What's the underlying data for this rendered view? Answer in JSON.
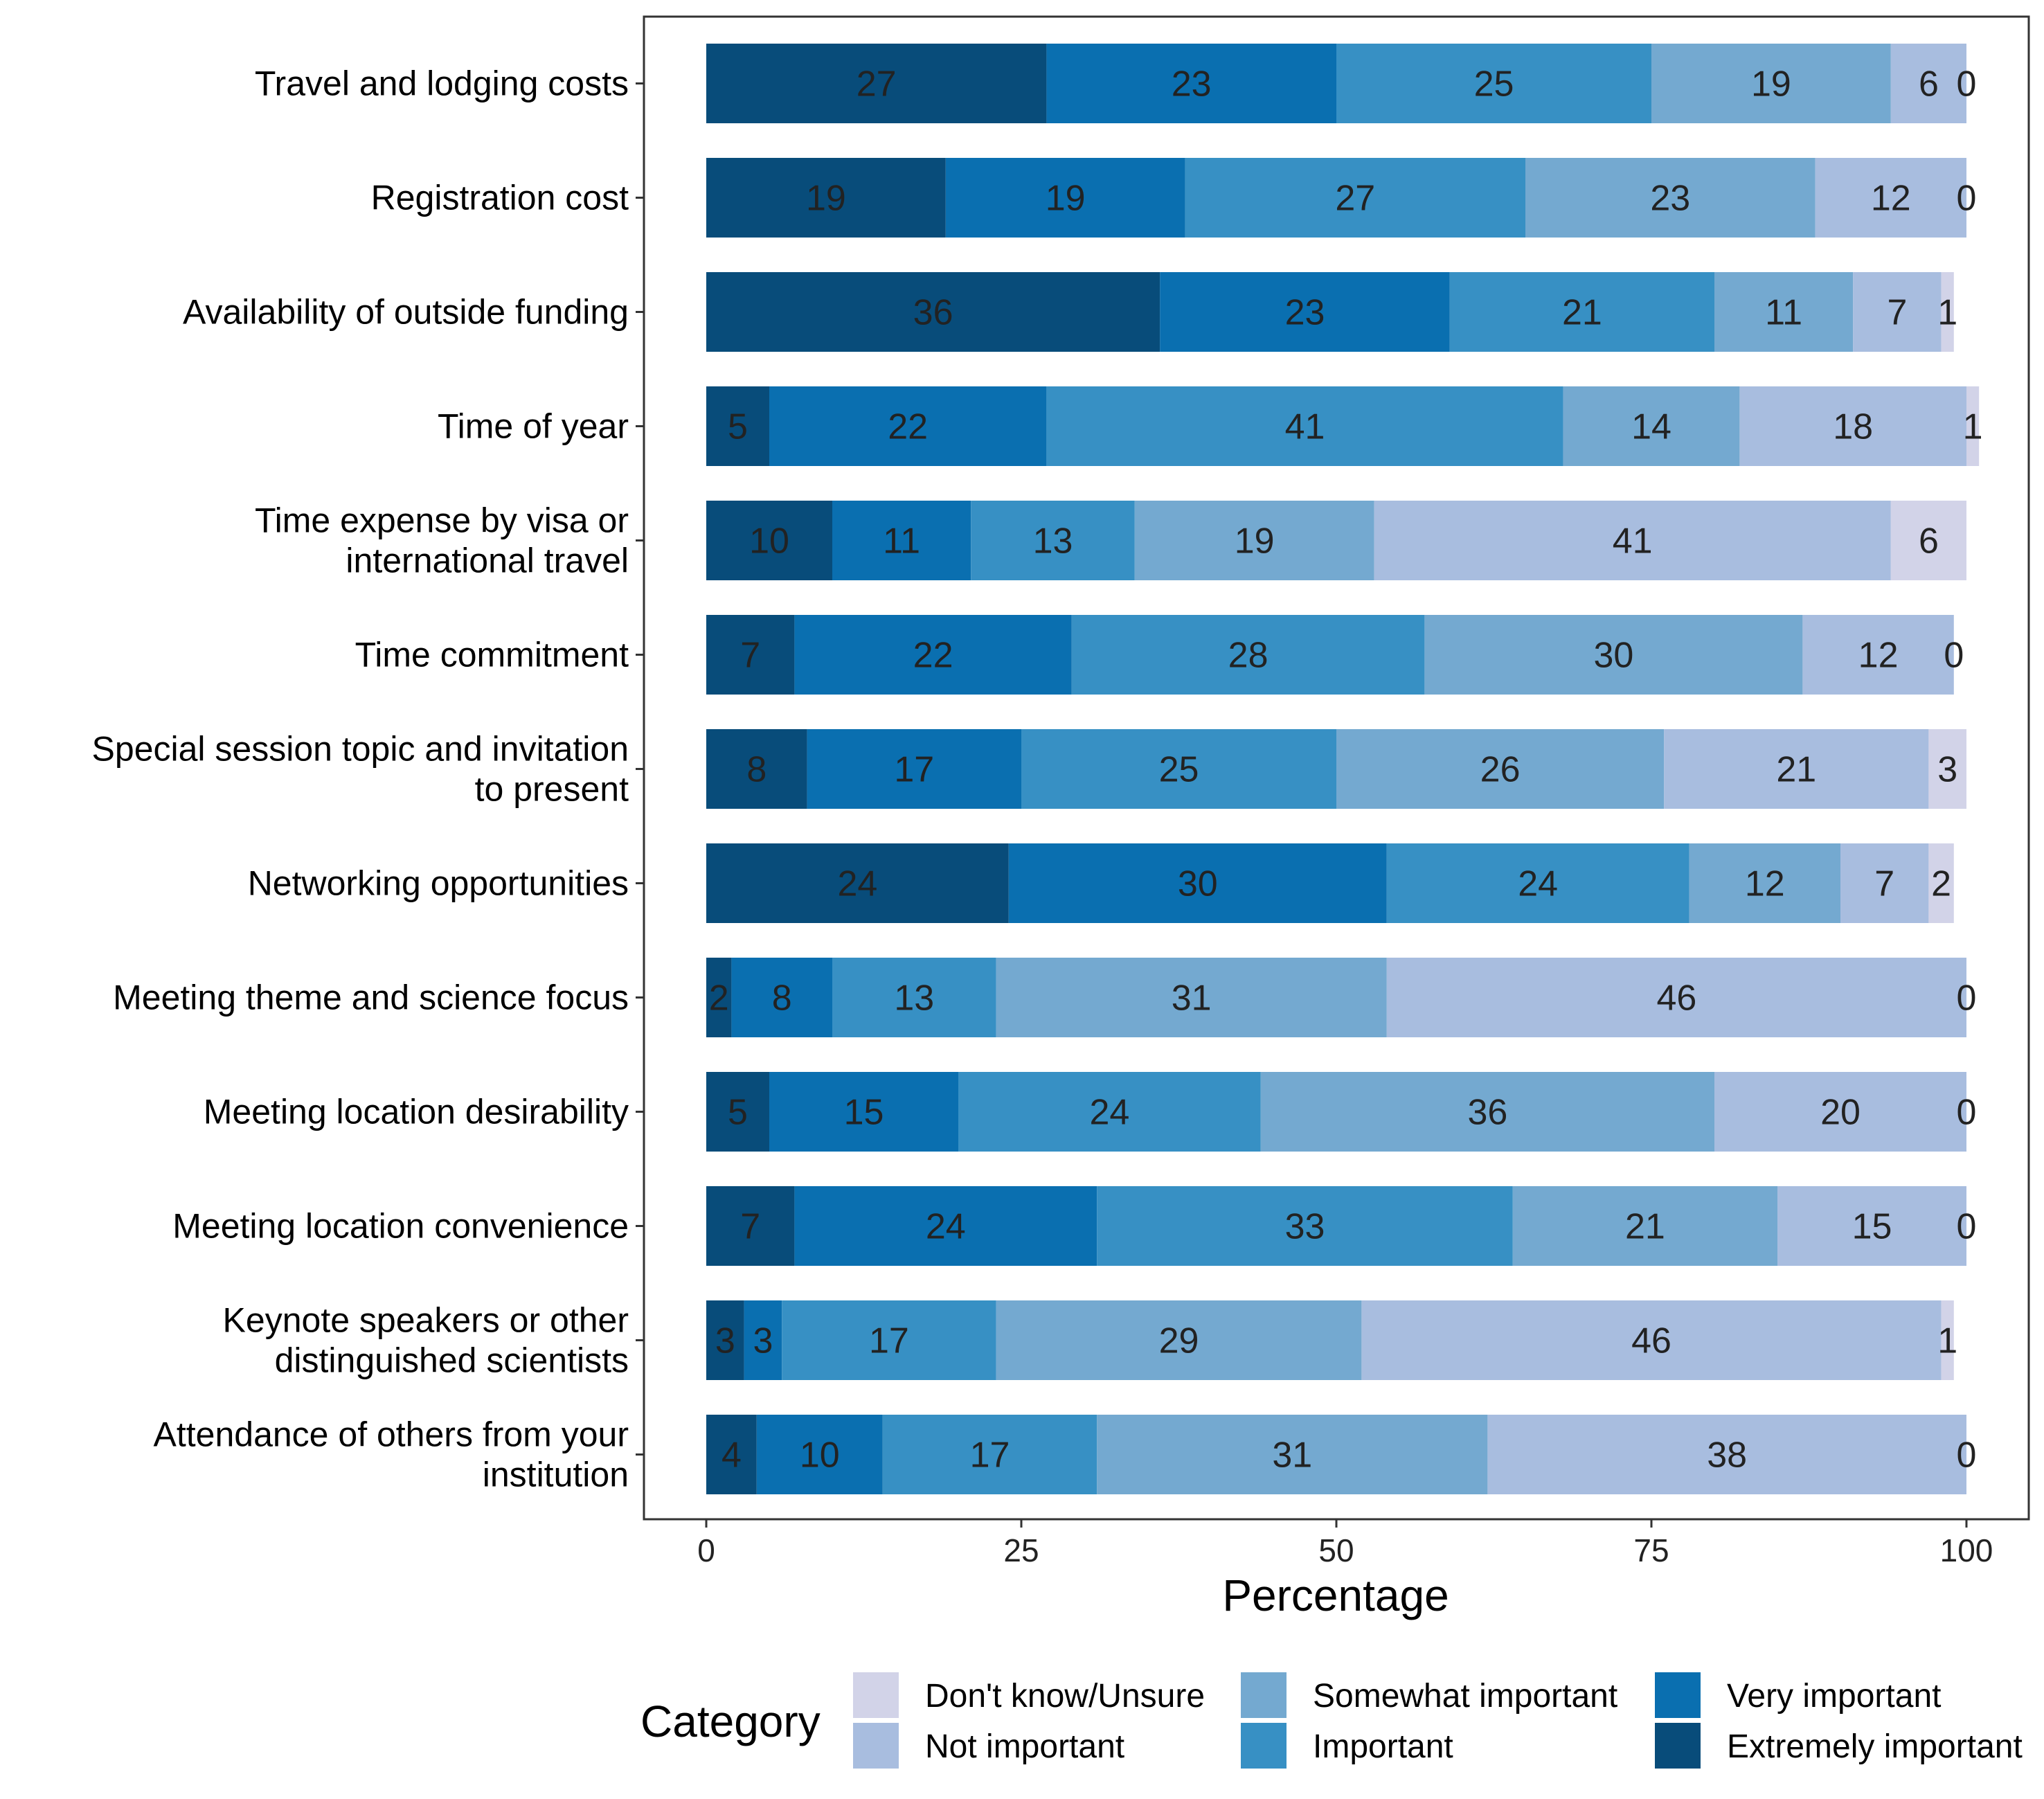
{
  "chart_data": {
    "type": "bar",
    "orientation": "horizontal",
    "stacked": true,
    "categories": [
      "Travel and lodging costs",
      "Registration cost",
      "Availability of outside funding",
      "Time of year",
      "Time expense by visa or\ninternational travel",
      "Time commitment",
      "Special session topic and invitation\nto present",
      "Networking opportunities",
      "Meeting theme and science focus",
      "Meeting location desirability",
      "Meeting location convenience",
      "Keynote speakers or other\ndistinguished scientists",
      "Attendance of others from your\ninstitution"
    ],
    "series": [
      {
        "name": "Extremely important",
        "color": "#084c7a",
        "values": [
          27,
          19,
          36,
          5,
          10,
          7,
          8,
          24,
          2,
          5,
          7,
          3,
          4
        ]
      },
      {
        "name": "Very important",
        "color": "#0a6fb0",
        "values": [
          23,
          19,
          23,
          22,
          11,
          22,
          17,
          30,
          8,
          15,
          24,
          3,
          10
        ]
      },
      {
        "name": "Important",
        "color": "#3790c4",
        "values": [
          25,
          27,
          21,
          41,
          13,
          28,
          25,
          24,
          13,
          24,
          33,
          17,
          17
        ]
      },
      {
        "name": "Somewhat important",
        "color": "#74a9d0",
        "values": [
          19,
          23,
          11,
          14,
          19,
          30,
          26,
          12,
          31,
          36,
          21,
          29,
          31
        ]
      },
      {
        "name": "Not important",
        "color": "#a8bddf",
        "values": [
          6,
          12,
          7,
          18,
          41,
          12,
          21,
          7,
          46,
          20,
          15,
          46,
          38
        ]
      },
      {
        "name": "Don't know/Unsure",
        "color": "#d2d3e8",
        "values": [
          0,
          0,
          1,
          1,
          6,
          0,
          3,
          2,
          0,
          0,
          0,
          1,
          0
        ]
      }
    ],
    "xlabel": "Percentage",
    "xlim": [
      0,
      100
    ],
    "xticks": [
      "0",
      "25",
      "50",
      "75",
      "100"
    ],
    "legend_title": "Category",
    "legend_order": [
      "Don't know/Unsure",
      "Not important",
      "Somewhat important",
      "Important",
      "Very important",
      "Extremely important"
    ],
    "legend_position": "bottom"
  }
}
